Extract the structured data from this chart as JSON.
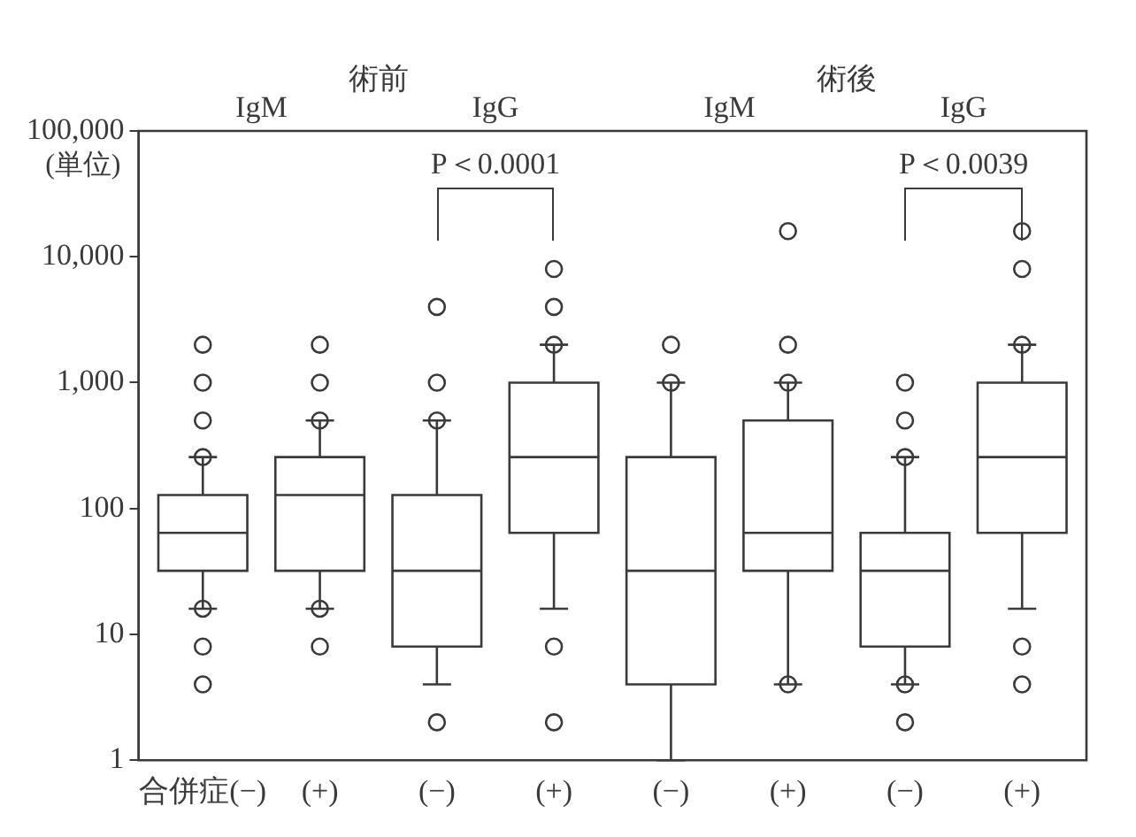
{
  "chart_data": {
    "type": "box",
    "ylabel": "(単位)",
    "color": "#3a3a3a",
    "categories": [
      "合併症(−)",
      "(+)",
      "(−)",
      "(+)",
      "(−)",
      "(+)",
      "(−)",
      "(+)"
    ],
    "boxes": [
      {
        "low": 16,
        "q1": 32,
        "median": 64,
        "q3": 128,
        "high": 256,
        "outliers": [
          2000,
          1000,
          500,
          256,
          16,
          8,
          4
        ]
      },
      {
        "low": 16,
        "q1": 32,
        "median": 128,
        "q3": 256,
        "high": 500,
        "outliers": [
          2000,
          1000,
          500,
          16,
          8
        ]
      },
      {
        "low": 4,
        "q1": 8,
        "median": 32,
        "q3": 128,
        "high": 500,
        "outliers": [
          4000,
          1000,
          500,
          2
        ]
      },
      {
        "low": 16,
        "q1": 64,
        "median": 256,
        "q3": 1000,
        "high": 2000,
        "outliers": [
          8000,
          4000,
          2000,
          8,
          2
        ]
      },
      {
        "low": 1,
        "q1": 4,
        "median": 32,
        "q3": 256,
        "high": 1000,
        "outliers": [
          2000,
          1000
        ]
      },
      {
        "low": 4,
        "q1": 32,
        "median": 64,
        "q3": 500,
        "high": 1000,
        "outliers": [
          16000,
          2000,
          1000,
          4
        ]
      },
      {
        "low": 4,
        "q1": 8,
        "median": 32,
        "q3": 64,
        "high": 256,
        "outliers": [
          1000,
          500,
          256,
          4,
          2
        ]
      },
      {
        "low": 16,
        "q1": 64,
        "median": 256,
        "q3": 1000,
        "high": 2000,
        "outliers": [
          16000,
          8000,
          2000,
          8,
          4
        ]
      }
    ],
    "log": true,
    "grid": false,
    "ylim": [
      1,
      100000
    ],
    "yticks": [
      1,
      10,
      100,
      {
        "value": 1000,
        "label": "1,000"
      },
      {
        "value": 10000,
        "label": "10,000"
      },
      {
        "value": 100000,
        "label": "100,000"
      }
    ],
    "annotations": [
      "IgM",
      "術前",
      "IgG",
      "IgM",
      "術後",
      "IgG",
      "P＜0.0001",
      "P＜0.0039"
    ]
  }
}
